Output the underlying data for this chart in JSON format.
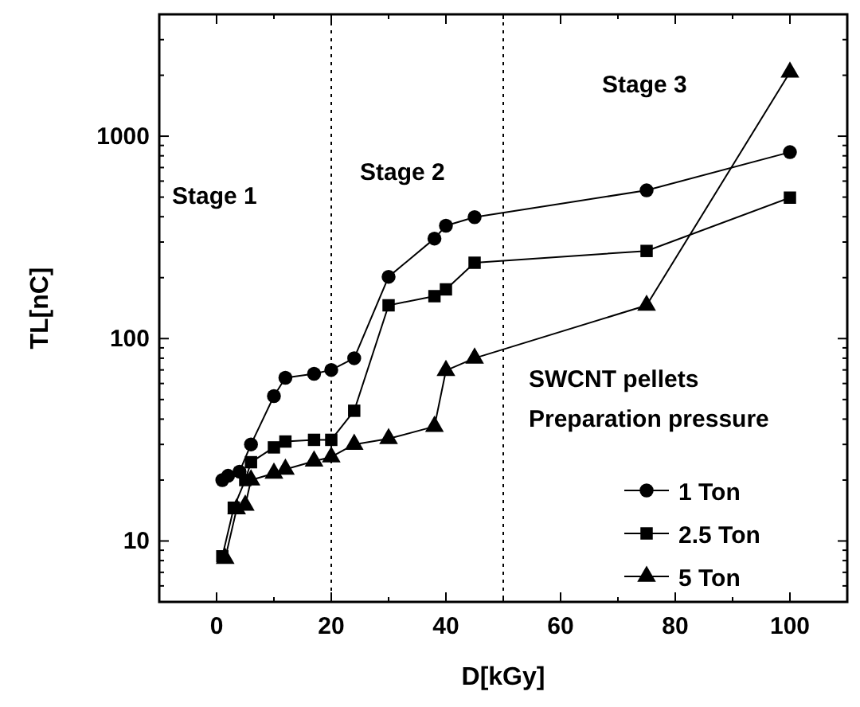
{
  "chart_data": {
    "type": "line",
    "xlabel": "D[kGy]",
    "ylabel": "TL[nC]",
    "log": "y",
    "xlim": [
      -10,
      110
    ],
    "ylim": [
      5,
      4000
    ],
    "xticks": [
      {
        "value": -10,
        "label": null
      },
      0,
      {
        "value": 10,
        "label": null
      },
      20,
      {
        "value": 30,
        "label": null
      },
      40,
      {
        "value": 50,
        "label": null
      },
      60,
      {
        "value": 70,
        "label": null
      },
      80,
      {
        "value": 90,
        "label": null
      },
      100,
      {
        "value": 110,
        "label": null
      }
    ],
    "yticks": [
      {
        "value": 5,
        "label": null
      },
      {
        "value": 6,
        "label": null
      },
      {
        "value": 7,
        "label": null
      },
      {
        "value": 8,
        "label": null
      },
      {
        "value": 9,
        "label": null
      },
      10,
      {
        "value": 20,
        "label": null
      },
      {
        "value": 30,
        "label": null
      },
      {
        "value": 40,
        "label": null
      },
      {
        "value": 50,
        "label": null
      },
      {
        "value": 60,
        "label": null
      },
      {
        "value": 70,
        "label": null
      },
      {
        "value": 80,
        "label": null
      },
      {
        "value": 90,
        "label": null
      },
      100,
      {
        "value": 200,
        "label": null
      },
      {
        "value": 300,
        "label": null
      },
      {
        "value": 400,
        "label": null
      },
      {
        "value": 500,
        "label": null
      },
      {
        "value": 600,
        "label": null
      },
      {
        "value": 700,
        "label": null
      },
      {
        "value": 800,
        "label": null
      },
      {
        "value": 900,
        "label": null
      },
      1000,
      {
        "value": 2000,
        "label": null
      },
      {
        "value": 3000,
        "label": null
      },
      {
        "value": 4000,
        "label": null
      }
    ],
    "grid": false,
    "legend": "bottom right",
    "legend_title": "SWCNT pellets\nPreparation pressure",
    "line_style": "solid",
    "series": [
      {
        "name": "1 Ton",
        "color": "#000000",
        "marker": "circle",
        "x": [
          1,
          2,
          4,
          6,
          10,
          12,
          17,
          20,
          24,
          30,
          38,
          40,
          45,
          75,
          100
        ],
        "values": [
          20,
          21,
          22,
          30,
          52,
          64,
          67,
          70,
          80,
          202,
          312,
          361,
          398,
          540,
          834
        ]
      },
      {
        "name": "2.5 Ton",
        "color": "#000000",
        "marker": "square",
        "x": [
          1,
          3,
          5,
          6,
          10,
          12,
          17,
          20,
          24,
          30,
          38,
          40,
          45,
          75,
          100
        ],
        "values": [
          8.4,
          14.6,
          20,
          24.5,
          29,
          31,
          31.6,
          31.6,
          44,
          146,
          162,
          175,
          237,
          271,
          497
        ]
      },
      {
        "name": "5 Ton",
        "color": "#000000",
        "marker": "triangle",
        "x": [
          1.5,
          3.5,
          5,
          6,
          10,
          12,
          17,
          20,
          24,
          30,
          38,
          40,
          45,
          75,
          100
        ],
        "values": [
          8.2,
          14.4,
          15,
          20,
          21.6,
          22.6,
          24.8,
          26,
          30,
          32,
          36.8,
          69.5,
          80,
          146,
          2070
        ]
      }
    ],
    "ref_lines": [
      {
        "axis": "x",
        "value": 20,
        "line_style": "dotted",
        "color": "#000000"
      },
      {
        "axis": "x",
        "value": 50,
        "line_style": "dotted",
        "color": "#000000"
      }
    ],
    "annotations": [
      "Stage 1",
      "Stage 2",
      "Stage 3"
    ]
  }
}
